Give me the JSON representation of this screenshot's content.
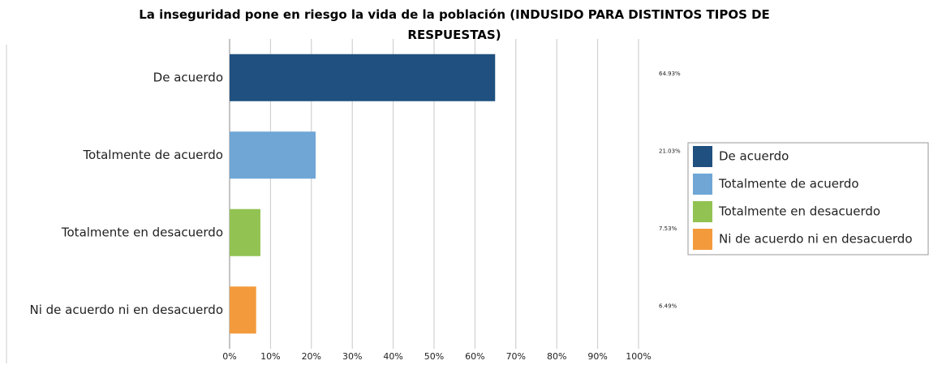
{
  "chart_data": {
    "type": "hbar",
    "title": "La inseguridad pone en riesgo la vida de la población  (INDUSIDO PARA DISTINTOS TIPOS DE RESPUESTAS)",
    "categories": [
      "De acuerdo",
      "Totalmente de acuerdo",
      "Totalmente en desacuerdo",
      "Ni de acuerdo ni en desacuerdo"
    ],
    "values": [
      64.93,
      21.03,
      7.53,
      6.49
    ],
    "value_labels": [
      "64.93%",
      "21.03%",
      "7.53%",
      "6.49%"
    ],
    "colors": [
      "#1f507f",
      "#6fa6d6",
      "#92c352",
      "#f39a3c"
    ],
    "xlim": [
      0,
      100
    ],
    "xticks": [
      {
        "value": 0,
        "label": "0%"
      },
      {
        "value": 10,
        "label": "10%"
      },
      {
        "value": 20,
        "label": "20%"
      },
      {
        "value": 30,
        "label": "30%"
      },
      {
        "value": 40,
        "label": "40%"
      },
      {
        "value": 50,
        "label": "50%"
      },
      {
        "value": 60,
        "label": "60%"
      },
      {
        "value": 70,
        "label": "70%"
      },
      {
        "value": 80,
        "label": "80%"
      },
      {
        "value": 90,
        "label": "90%"
      },
      {
        "value": 100,
        "label": "100%"
      }
    ],
    "grid": true,
    "legend": "right"
  }
}
